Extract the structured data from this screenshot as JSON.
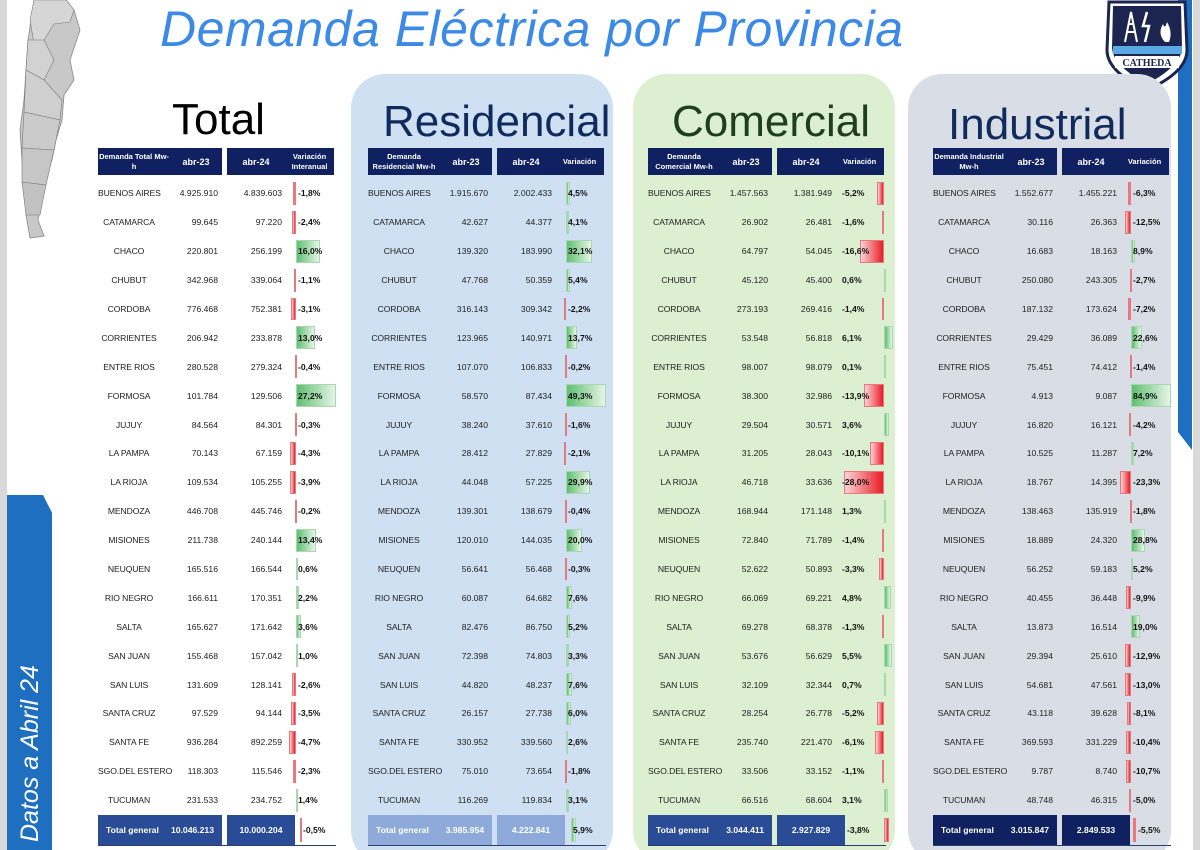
{
  "header": {
    "title": "Demanda Eléctrica por Provincia",
    "badge_text": "CATHEDA",
    "side_label": "Datos a Abril 24"
  },
  "colors": {
    "title_blue": "#3b8ae8",
    "header_navy": "#0f2160",
    "positive_green": "#5fbf70",
    "negative_red": "#e81d25",
    "residencial_bg": "#cfe0f3",
    "comercial_bg": "#dcefd0",
    "industrial_bg": "#d9dee6"
  },
  "sections": {
    "total": {
      "title": "Total",
      "col_label": "Demanda Total Mw-h",
      "col_23": "abr-23",
      "col_24": "abr-24",
      "col_var": "Variación Interanual",
      "total_label": "Total general",
      "total_23": "10.046.213",
      "total_24": "10.000.204",
      "total_var": "-0,5%",
      "total_var_num": -0.5,
      "bar_max": 27.2,
      "rows": [
        {
          "name": "BUENOS AIRES",
          "v23": "4.925.910",
          "v24": "4.839.603",
          "var": "-1,8%",
          "n": -1.8
        },
        {
          "name": "CATAMARCA",
          "v23": "99.645",
          "v24": "97.220",
          "var": "-2,4%",
          "n": -2.4
        },
        {
          "name": "CHACO",
          "v23": "220.801",
          "v24": "256.199",
          "var": "16,0%",
          "n": 16.0
        },
        {
          "name": "CHUBUT",
          "v23": "342.968",
          "v24": "339.064",
          "var": "-1,1%",
          "n": -1.1
        },
        {
          "name": "CORDOBA",
          "v23": "776.468",
          "v24": "752.381",
          "var": "-3,1%",
          "n": -3.1
        },
        {
          "name": "CORRIENTES",
          "v23": "206.942",
          "v24": "233.878",
          "var": "13,0%",
          "n": 13.0
        },
        {
          "name": "ENTRE RIOS",
          "v23": "280.528",
          "v24": "279.324",
          "var": "-0,4%",
          "n": -0.4
        },
        {
          "name": "FORMOSA",
          "v23": "101.784",
          "v24": "129.506",
          "var": "27,2%",
          "n": 27.2
        },
        {
          "name": "JUJUY",
          "v23": "84.564",
          "v24": "84.301",
          "var": "-0,3%",
          "n": -0.3
        },
        {
          "name": "LA PAMPA",
          "v23": "70.143",
          "v24": "67.159",
          "var": "-4,3%",
          "n": -4.3
        },
        {
          "name": "LA RIOJA",
          "v23": "109.534",
          "v24": "105.255",
          "var": "-3,9%",
          "n": -3.9
        },
        {
          "name": "MENDOZA",
          "v23": "446.708",
          "v24": "445.746",
          "var": "-0,2%",
          "n": -0.2
        },
        {
          "name": "MISIONES",
          "v23": "211.738",
          "v24": "240.144",
          "var": "13,4%",
          "n": 13.4
        },
        {
          "name": "NEUQUEN",
          "v23": "165.516",
          "v24": "166.544",
          "var": "0,6%",
          "n": 0.6
        },
        {
          "name": "RIO NEGRO",
          "v23": "166.611",
          "v24": "170.351",
          "var": "2,2%",
          "n": 2.2
        },
        {
          "name": "SALTA",
          "v23": "165.627",
          "v24": "171.642",
          "var": "3,6%",
          "n": 3.6
        },
        {
          "name": "SAN JUAN",
          "v23": "155.468",
          "v24": "157.042",
          "var": "1,0%",
          "n": 1.0
        },
        {
          "name": "SAN LUIS",
          "v23": "131.609",
          "v24": "128.141",
          "var": "-2,6%",
          "n": -2.6
        },
        {
          "name": "SANTA CRUZ",
          "v23": "97.529",
          "v24": "94.144",
          "var": "-3,5%",
          "n": -3.5
        },
        {
          "name": "SANTA FE",
          "v23": "936.284",
          "v24": "892.259",
          "var": "-4,7%",
          "n": -4.7
        },
        {
          "name": "SGO.DEL ESTERO",
          "v23": "118.303",
          "v24": "115.546",
          "var": "-2,3%",
          "n": -2.3
        },
        {
          "name": "TUCUMAN",
          "v23": "231.533",
          "v24": "234.752",
          "var": "1,4%",
          "n": 1.4
        }
      ]
    },
    "residencial": {
      "title": "Residencial",
      "col_label": "Demanda Residencial Mw-h",
      "col_23": "abr-23",
      "col_24": "abr-24",
      "col_var": "Variación",
      "total_label": "Total general",
      "total_23": "3.985.954",
      "total_24": "4.222.841",
      "total_var": "5,9%",
      "total_var_num": 5.9,
      "bar_max": 49.3,
      "rows": [
        {
          "name": "BUENOS AIRES",
          "v23": "1.915.670",
          "v24": "2.002.433",
          "var": "4,5%",
          "n": 4.5
        },
        {
          "name": "CATAMARCA",
          "v23": "42.627",
          "v24": "44.377",
          "var": "4,1%",
          "n": 4.1
        },
        {
          "name": "CHACO",
          "v23": "139.320",
          "v24": "183.990",
          "var": "32,1%",
          "n": 32.1
        },
        {
          "name": "CHUBUT",
          "v23": "47.768",
          "v24": "50.359",
          "var": "5,4%",
          "n": 5.4
        },
        {
          "name": "CORDOBA",
          "v23": "316.143",
          "v24": "309.342",
          "var": "-2,2%",
          "n": -2.2
        },
        {
          "name": "CORRIENTES",
          "v23": "123.965",
          "v24": "140.971",
          "var": "13,7%",
          "n": 13.7
        },
        {
          "name": "ENTRE RIOS",
          "v23": "107.070",
          "v24": "106.833",
          "var": "-0,2%",
          "n": -0.2
        },
        {
          "name": "FORMOSA",
          "v23": "58.570",
          "v24": "87.434",
          "var": "49,3%",
          "n": 49.3
        },
        {
          "name": "JUJUY",
          "v23": "38.240",
          "v24": "37.610",
          "var": "-1,6%",
          "n": -1.6
        },
        {
          "name": "LA PAMPA",
          "v23": "28.412",
          "v24": "27.829",
          "var": "-2,1%",
          "n": -2.1
        },
        {
          "name": "LA RIOJA",
          "v23": "44.048",
          "v24": "57.225",
          "var": "29,9%",
          "n": 29.9
        },
        {
          "name": "MENDOZA",
          "v23": "139.301",
          "v24": "138.679",
          "var": "-0,4%",
          "n": -0.4
        },
        {
          "name": "MISIONES",
          "v23": "120.010",
          "v24": "144.035",
          "var": "20,0%",
          "n": 20.0
        },
        {
          "name": "NEUQUEN",
          "v23": "56.641",
          "v24": "56.468",
          "var": "-0,3%",
          "n": -0.3
        },
        {
          "name": "RIO NEGRO",
          "v23": "60.087",
          "v24": "64.682",
          "var": "7,6%",
          "n": 7.6
        },
        {
          "name": "SALTA",
          "v23": "82.476",
          "v24": "86.750",
          "var": "5,2%",
          "n": 5.2
        },
        {
          "name": "SAN JUAN",
          "v23": "72.398",
          "v24": "74.803",
          "var": "3,3%",
          "n": 3.3
        },
        {
          "name": "SAN LUIS",
          "v23": "44.820",
          "v24": "48.237",
          "var": "7,6%",
          "n": 7.6
        },
        {
          "name": "SANTA CRUZ",
          "v23": "26.157",
          "v24": "27.738",
          "var": "6,0%",
          "n": 6.0
        },
        {
          "name": "SANTA FE",
          "v23": "330.952",
          "v24": "339.560",
          "var": "2,6%",
          "n": 2.6
        },
        {
          "name": "SGO.DEL ESTERO",
          "v23": "75.010",
          "v24": "73.654",
          "var": "-1,8%",
          "n": -1.8
        },
        {
          "name": "TUCUMAN",
          "v23": "116.269",
          "v24": "119.834",
          "var": "3,1%",
          "n": 3.1
        }
      ]
    },
    "comercial": {
      "title": "Comercial",
      "col_label": "Demanda Comercial Mw-h",
      "col_23": "abr-23",
      "col_24": "abr-24",
      "col_var": "Variación",
      "total_label": "Total general",
      "total_23": "3.044.411",
      "total_24": "2.927.829",
      "total_var": "-3,8%",
      "total_var_num": -3.8,
      "bar_max": 28.0,
      "rows": [
        {
          "name": "BUENOS AIRES",
          "v23": "1.457.563",
          "v24": "1.381.949",
          "var": "-5,2%",
          "n": -5.2
        },
        {
          "name": "CATAMARCA",
          "v23": "26.902",
          "v24": "26.481",
          "var": "-1,6%",
          "n": -1.6
        },
        {
          "name": "CHACO",
          "v23": "64.797",
          "v24": "54.045",
          "var": "-16,6%",
          "n": -16.6
        },
        {
          "name": "CHUBUT",
          "v23": "45.120",
          "v24": "45.400",
          "var": "0,6%",
          "n": 0.6
        },
        {
          "name": "CORDOBA",
          "v23": "273.193",
          "v24": "269.416",
          "var": "-1,4%",
          "n": -1.4
        },
        {
          "name": "CORRIENTES",
          "v23": "53.548",
          "v24": "56.818",
          "var": "6,1%",
          "n": 6.1
        },
        {
          "name": "ENTRE RIOS",
          "v23": "98.007",
          "v24": "98.079",
          "var": "0,1%",
          "n": 0.1
        },
        {
          "name": "FORMOSA",
          "v23": "38.300",
          "v24": "32.986",
          "var": "-13,9%",
          "n": -13.9
        },
        {
          "name": "JUJUY",
          "v23": "29.504",
          "v24": "30.571",
          "var": "3,6%",
          "n": 3.6
        },
        {
          "name": "LA PAMPA",
          "v23": "31.205",
          "v24": "28.043",
          "var": "-10,1%",
          "n": -10.1
        },
        {
          "name": "LA RIOJA",
          "v23": "46.718",
          "v24": "33.636",
          "var": "-28,0%",
          "n": -28.0
        },
        {
          "name": "MENDOZA",
          "v23": "168.944",
          "v24": "171.148",
          "var": "1,3%",
          "n": 1.3
        },
        {
          "name": "MISIONES",
          "v23": "72.840",
          "v24": "71.789",
          "var": "-1,4%",
          "n": -1.4
        },
        {
          "name": "NEUQUEN",
          "v23": "52.622",
          "v24": "50.893",
          "var": "-3,3%",
          "n": -3.3
        },
        {
          "name": "RIO NEGRO",
          "v23": "66.069",
          "v24": "69.221",
          "var": "4,8%",
          "n": 4.8
        },
        {
          "name": "SALTA",
          "v23": "69.278",
          "v24": "68.378",
          "var": "-1,3%",
          "n": -1.3
        },
        {
          "name": "SAN JUAN",
          "v23": "53.676",
          "v24": "56.629",
          "var": "5,5%",
          "n": 5.5
        },
        {
          "name": "SAN LUIS",
          "v23": "32.109",
          "v24": "32.344",
          "var": "0,7%",
          "n": 0.7
        },
        {
          "name": "SANTA CRUZ",
          "v23": "28.254",
          "v24": "26.778",
          "var": "-5,2%",
          "n": -5.2
        },
        {
          "name": "SANTA FE",
          "v23": "235.740",
          "v24": "221.470",
          "var": "-6,1%",
          "n": -6.1
        },
        {
          "name": "SGO.DEL ESTERO",
          "v23": "33.506",
          "v24": "33.152",
          "var": "-1,1%",
          "n": -1.1
        },
        {
          "name": "TUCUMAN",
          "v23": "66.516",
          "v24": "68.604",
          "var": "3,1%",
          "n": 3.1
        }
      ]
    },
    "industrial": {
      "title": "Industrial",
      "col_label": "Demanda Industrial Mw-h",
      "col_23": "abr-23",
      "col_24": "abr-24",
      "col_var": "Variación",
      "total_label": "Total general",
      "total_23": "3.015.847",
      "total_24": "2.849.533",
      "total_var": "-5,5%",
      "total_var_num": -5.5,
      "bar_max": 84.9,
      "rows": [
        {
          "name": "BUENOS AIRES",
          "v23": "1.552.677",
          "v24": "1.455.221",
          "var": "-6,3%",
          "n": -6.3
        },
        {
          "name": "CATAMARCA",
          "v23": "30.116",
          "v24": "26.363",
          "var": "-12,5%",
          "n": -12.5
        },
        {
          "name": "CHACO",
          "v23": "16.683",
          "v24": "18.163",
          "var": "8,9%",
          "n": 8.9
        },
        {
          "name": "CHUBUT",
          "v23": "250.080",
          "v24": "243.305",
          "var": "-2,7%",
          "n": -2.7
        },
        {
          "name": "CORDOBA",
          "v23": "187.132",
          "v24": "173.624",
          "var": "-7,2%",
          "n": -7.2
        },
        {
          "name": "CORRIENTES",
          "v23": "29.429",
          "v24": "36.089",
          "var": "22,6%",
          "n": 22.6
        },
        {
          "name": "ENTRE RIOS",
          "v23": "75.451",
          "v24": "74.412",
          "var": "-1,4%",
          "n": -1.4
        },
        {
          "name": "FORMOSA",
          "v23": "4.913",
          "v24": "9.087",
          "var": "84,9%",
          "n": 84.9
        },
        {
          "name": "JUJUY",
          "v23": "16.820",
          "v24": "16.121",
          "var": "-4,2%",
          "n": -4.2
        },
        {
          "name": "LA PAMPA",
          "v23": "10.525",
          "v24": "11.287",
          "var": "7,2%",
          "n": 7.2
        },
        {
          "name": "LA RIOJA",
          "v23": "18.767",
          "v24": "14.395",
          "var": "-23,3%",
          "n": -23.3
        },
        {
          "name": "MENDOZA",
          "v23": "138.463",
          "v24": "135.919",
          "var": "-1,8%",
          "n": -1.8
        },
        {
          "name": "MISIONES",
          "v23": "18.889",
          "v24": "24.320",
          "var": "28,8%",
          "n": 28.8
        },
        {
          "name": "NEUQUEN",
          "v23": "56.252",
          "v24": "59.183",
          "var": "5,2%",
          "n": 5.2
        },
        {
          "name": "RIO NEGRO",
          "v23": "40.455",
          "v24": "36.448",
          "var": "-9,9%",
          "n": -9.9
        },
        {
          "name": "SALTA",
          "v23": "13.873",
          "v24": "16.514",
          "var": "19,0%",
          "n": 19.0
        },
        {
          "name": "SAN JUAN",
          "v23": "29.394",
          "v24": "25.610",
          "var": "-12,9%",
          "n": -12.9
        },
        {
          "name": "SAN LUIS",
          "v23": "54.681",
          "v24": "47.561",
          "var": "-13,0%",
          "n": -13.0
        },
        {
          "name": "SANTA CRUZ",
          "v23": "43.118",
          "v24": "39.628",
          "var": "-8,1%",
          "n": -8.1
        },
        {
          "name": "SANTA FE",
          "v23": "369.593",
          "v24": "331.229",
          "var": "-10,4%",
          "n": -10.4
        },
        {
          "name": "SGO.DEL ESTERO",
          "v23": "9.787",
          "v24": "8.740",
          "var": "-10,7%",
          "n": -10.7
        },
        {
          "name": "TUCUMAN",
          "v23": "48.748",
          "v24": "46.315",
          "var": "-5,0%",
          "n": -5.0
        }
      ]
    }
  }
}
